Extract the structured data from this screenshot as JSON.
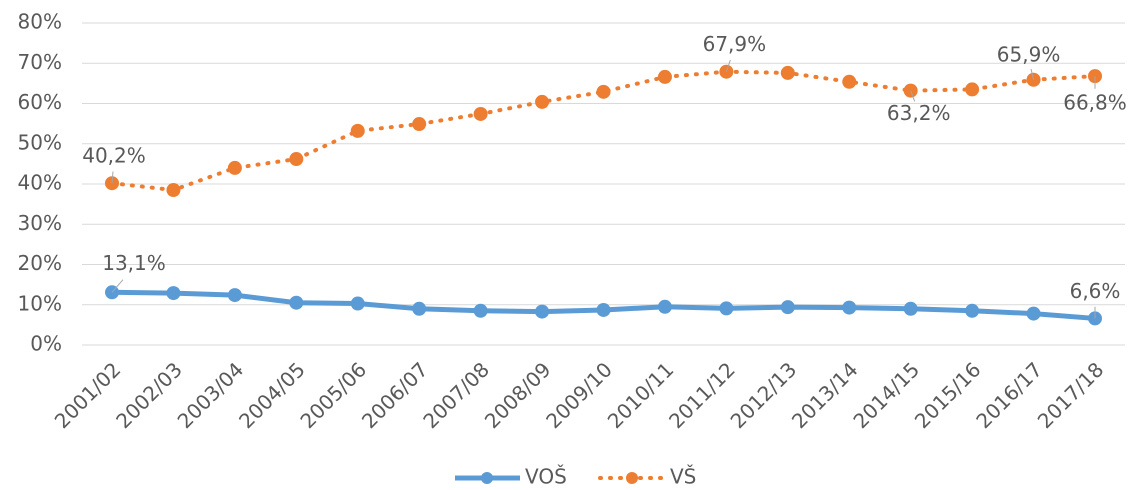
{
  "chart_data": {
    "type": "line",
    "categories": [
      "2001/02",
      "2002/03",
      "2003/04",
      "2004/05",
      "2005/06",
      "2006/07",
      "2007/08",
      "2008/09",
      "2009/10",
      "2010/11",
      "2011/12",
      "2012/13",
      "2013/14",
      "2014/15",
      "2015/16",
      "2016/17",
      "2017/18"
    ],
    "series": [
      {
        "name": "VOŠ",
        "color": "#5b9bd5",
        "style": "solid",
        "values": [
          13.1,
          12.9,
          12.4,
          10.5,
          10.3,
          9.0,
          8.5,
          8.3,
          8.7,
          9.5,
          9.1,
          9.4,
          9.3,
          9.0,
          8.5,
          7.8,
          6.6
        ],
        "value_labels": [
          "13,1%",
          null,
          null,
          null,
          null,
          null,
          null,
          null,
          null,
          null,
          null,
          null,
          null,
          null,
          null,
          null,
          "6,6%"
        ]
      },
      {
        "name": "VŠ",
        "color": "#ed7d31",
        "style": "dotted",
        "values": [
          40.2,
          38.5,
          44.0,
          46.2,
          53.2,
          54.9,
          57.4,
          60.4,
          62.9,
          66.6,
          67.9,
          67.6,
          65.4,
          63.2,
          63.5,
          65.9,
          66.8
        ],
        "value_labels": [
          "40,2%",
          null,
          null,
          null,
          null,
          null,
          null,
          null,
          null,
          null,
          "67,9%",
          null,
          null,
          "63,2%",
          null,
          "65,9%",
          "66,8%"
        ]
      }
    ],
    "ylim": [
      0,
      80
    ],
    "yticks": [
      {
        "value": 0,
        "label": "0%"
      },
      {
        "value": 10,
        "label": "10%"
      },
      {
        "value": 20,
        "label": "20%"
      },
      {
        "value": 30,
        "label": "30%"
      },
      {
        "value": 40,
        "label": "40%"
      },
      {
        "value": 50,
        "label": "50%"
      },
      {
        "value": 60,
        "label": "60%"
      },
      {
        "value": 70,
        "label": "70%"
      },
      {
        "value": 80,
        "label": "80%"
      }
    ],
    "grid": true,
    "legend": "bottom"
  }
}
